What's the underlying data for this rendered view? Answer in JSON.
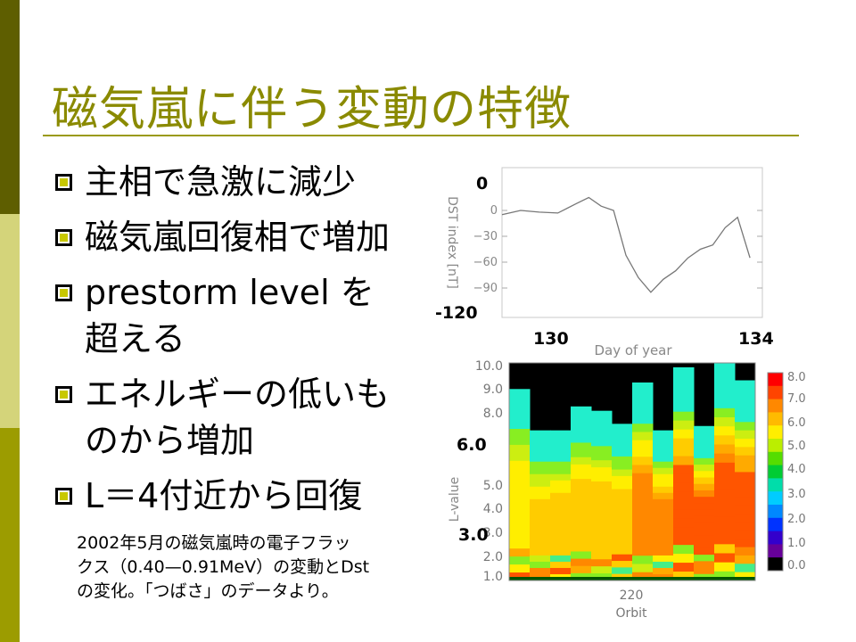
{
  "slide": {
    "title": "磁気嵐に伴う変動の特徴",
    "bullets": [
      {
        "lines": [
          "主相で急激に減少"
        ]
      },
      {
        "lines": [
          "磁気嵐回復相で増加"
        ]
      },
      {
        "lines": [
          "prestorm level を",
          "超える"
        ]
      },
      {
        "lines": [
          "エネルギーの低いも",
          "のから増加"
        ]
      },
      {
        "lines": [
          "L＝4付近から回復"
        ]
      }
    ],
    "caption_lines": [
      "2002年5月の磁気嵐時の電子フラッ",
      "クス（0.40—0.91MeV）の変動とDst",
      "の変化。「つばさ」のデータより。"
    ],
    "colors": {
      "band_dark": "#5e5e00",
      "band_light": "#d4d47a",
      "band_mid": "#9c9c00",
      "title": "#8a8a00",
      "rule": "#9a9a14"
    }
  },
  "dst_plot": {
    "ylabel": "DST index [nT]",
    "xlabel": "Day of year",
    "yticks": [
      "0",
      "−30",
      "−60",
      "−90"
    ],
    "ylim": [
      -120,
      30
    ],
    "annot_top": "0",
    "annot_bottom": "-120",
    "annot_x_left": "130",
    "annot_x_right": "134"
  },
  "flux_plot": {
    "ylabel": "L-value",
    "xlabel": "Orbit",
    "xtick": "220",
    "yticks": [
      "10.0",
      "9.0",
      "8.0",
      "5.0",
      "4.0",
      "3.0",
      "2.0",
      "1.0"
    ],
    "annot_upper": "6.0",
    "annot_lower": "3.0",
    "colorbar_ticks": [
      "8.0",
      "7.0",
      "6.0",
      "5.0",
      "4.0",
      "3.0",
      "2.0",
      "1.0",
      "0.0"
    ]
  },
  "chart_data": {
    "type": "line",
    "title": "",
    "xlabel": "Day of year",
    "ylabel": "DST index [nT]",
    "ylim": [
      -120,
      30
    ],
    "x": [
      130.0,
      130.3,
      130.6,
      130.9,
      131.2,
      131.4,
      131.6,
      131.8,
      132.0,
      132.2,
      132.4,
      132.6,
      132.8,
      133.0,
      133.2,
      133.4,
      133.6,
      133.8,
      134.0
    ],
    "series": [
      {
        "values": [
          -5,
          0,
          -2,
          -3,
          8,
          15,
          5,
          0,
          -52,
          -78,
          -95,
          -80,
          -70,
          -55,
          -45,
          -40,
          -20,
          -8,
          -55
        ]
      }
    ]
  }
}
